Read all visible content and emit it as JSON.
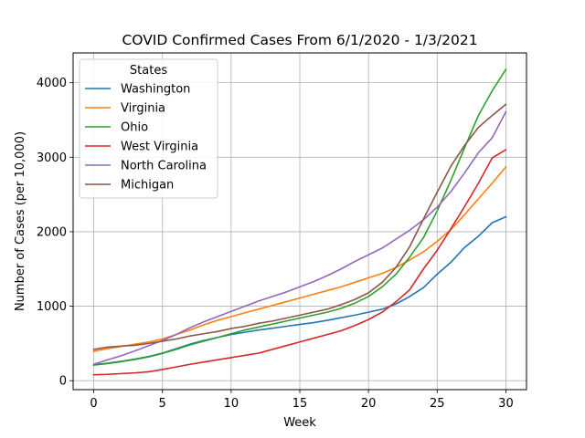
{
  "chart_data": {
    "type": "line",
    "title": "COVID Confirmed Cases From 6/1/2020 - 1/3/2021",
    "xlabel": "Week",
    "ylabel": "Number of Cases (per 10,000)",
    "xlim": [
      -1.5,
      31.5
    ],
    "ylim": [
      -120,
      4400
    ],
    "xticks": [
      0,
      5,
      10,
      15,
      20,
      25,
      30
    ],
    "yticks": [
      0,
      1000,
      2000,
      3000,
      4000
    ],
    "grid": true,
    "legend": {
      "title": "States",
      "placement": "upper-left"
    },
    "x": [
      0,
      1,
      2,
      3,
      4,
      5,
      6,
      7,
      8,
      9,
      10,
      11,
      12,
      13,
      14,
      15,
      16,
      17,
      18,
      19,
      20,
      21,
      22,
      23,
      24,
      25,
      26,
      27,
      28,
      29,
      30
    ],
    "series": [
      {
        "name": "Washington",
        "color": "#1f77b4",
        "values": [
          215,
          235,
          260,
          290,
          325,
          370,
          430,
          490,
          540,
          580,
          620,
          650,
          680,
          705,
          730,
          755,
          780,
          810,
          845,
          880,
          920,
          960,
          1030,
          1130,
          1250,
          1430,
          1590,
          1790,
          1940,
          2120,
          2200
        ]
      },
      {
        "name": "Virginia",
        "color": "#ff7f0e",
        "values": [
          395,
          430,
          460,
          490,
          520,
          560,
          620,
          680,
          750,
          810,
          860,
          910,
          960,
          1010,
          1060,
          1110,
          1160,
          1210,
          1260,
          1320,
          1380,
          1440,
          1520,
          1620,
          1730,
          1870,
          2030,
          2230,
          2440,
          2650,
          2870
        ]
      },
      {
        "name": "Ohio",
        "color": "#2ca02c",
        "values": [
          210,
          230,
          255,
          285,
          320,
          365,
          420,
          480,
          530,
          580,
          630,
          680,
          720,
          760,
          800,
          840,
          880,
          920,
          970,
          1040,
          1130,
          1260,
          1430,
          1660,
          1920,
          2280,
          2690,
          3130,
          3560,
          3890,
          4180
        ]
      },
      {
        "name": "West Virginia",
        "color": "#d62728",
        "values": [
          80,
          85,
          95,
          105,
          120,
          150,
          185,
          220,
          250,
          280,
          310,
          340,
          370,
          420,
          470,
          520,
          570,
          620,
          670,
          740,
          820,
          920,
          1060,
          1220,
          1500,
          1750,
          2040,
          2340,
          2650,
          2990,
          3100
        ]
      },
      {
        "name": "North Carolina",
        "color": "#9467bd",
        "values": [
          220,
          280,
          335,
          400,
          470,
          540,
          620,
          710,
          790,
          860,
          930,
          1000,
          1070,
          1130,
          1190,
          1260,
          1330,
          1410,
          1500,
          1600,
          1690,
          1780,
          1900,
          2020,
          2160,
          2330,
          2540,
          2790,
          3060,
          3260,
          3610
        ]
      },
      {
        "name": "Michigan",
        "color": "#8c564b",
        "values": [
          420,
          450,
          465,
          475,
          500,
          530,
          560,
          600,
          630,
          660,
          700,
          730,
          770,
          800,
          840,
          880,
          920,
          960,
          1020,
          1090,
          1180,
          1320,
          1520,
          1800,
          2170,
          2530,
          2880,
          3160,
          3400,
          3560,
          3710
        ]
      }
    ]
  }
}
